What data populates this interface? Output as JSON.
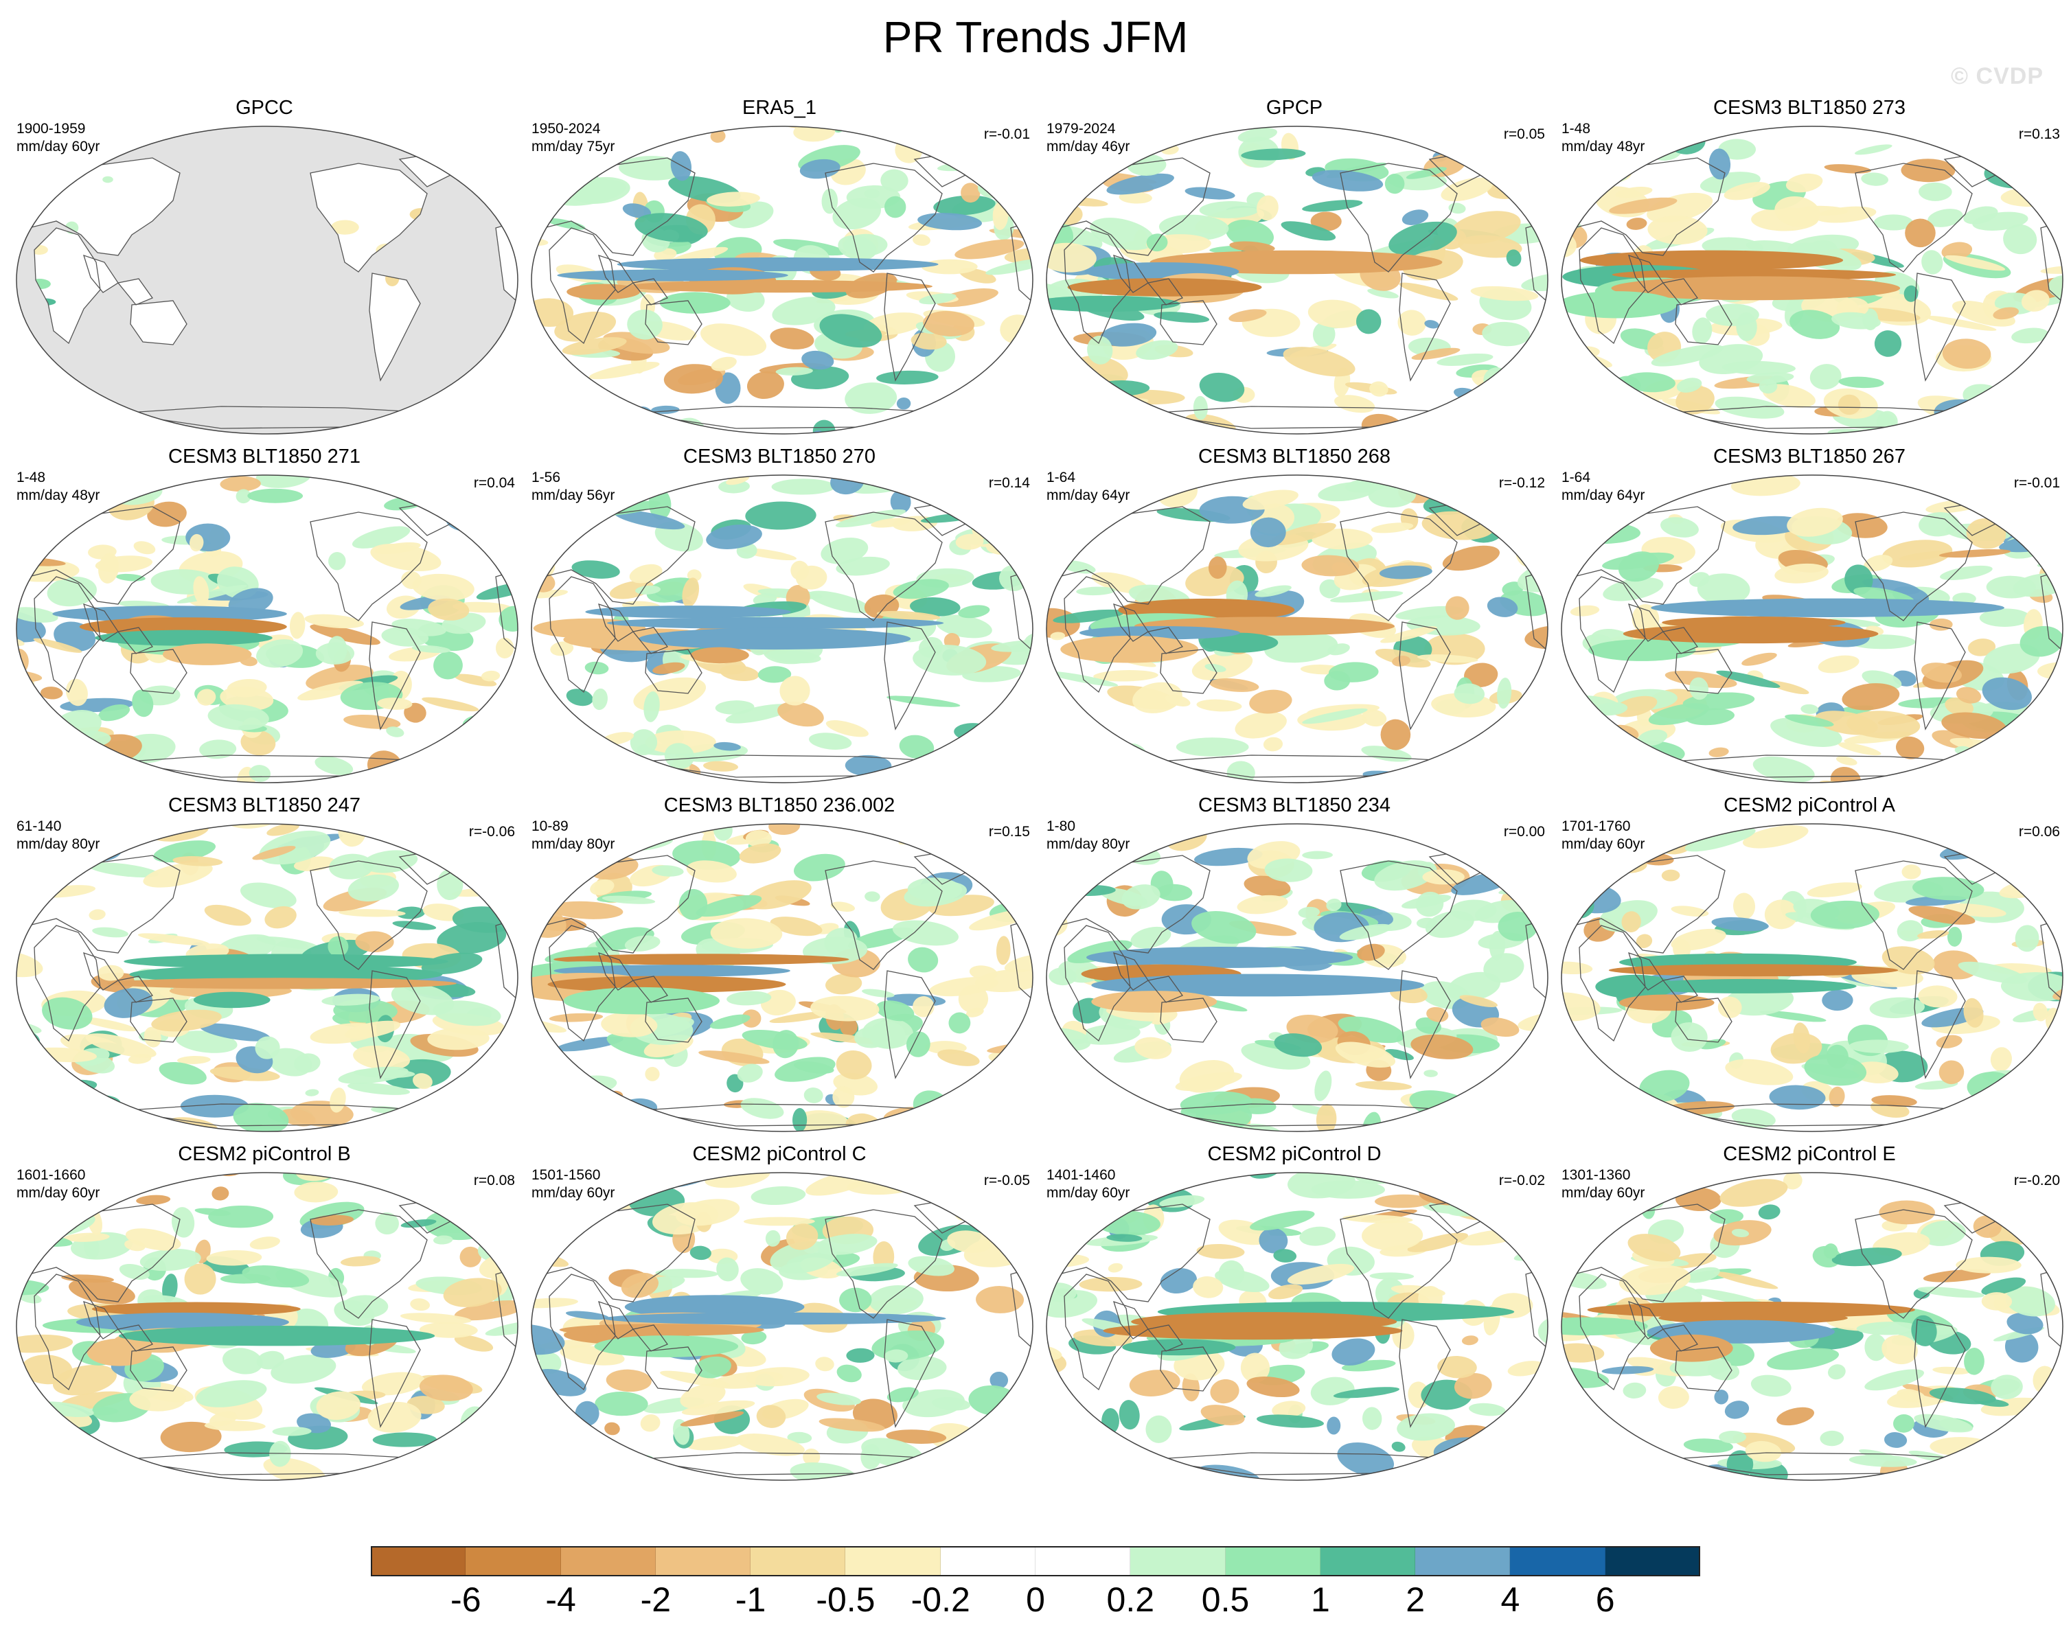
{
  "figure": {
    "title": "PR Trends JFM",
    "watermark": "© CVDP"
  },
  "chart_data": {
    "type": "heatmap",
    "title": "PR Trends JFM",
    "variable": "precipitation trend",
    "season": "JFM",
    "projection": "Robinson (global, Pacific-centered)",
    "panels": [
      {
        "title": "GPCC",
        "period": "1900-1959",
        "units": "mm/day 60yr",
        "r": "",
        "coverage": "land-only"
      },
      {
        "title": "ERA5_1",
        "period": "1950-2024",
        "units": "mm/day 75yr",
        "r": "r=-0.01",
        "coverage": "global"
      },
      {
        "title": "GPCP",
        "period": "1979-2024",
        "units": "mm/day 46yr",
        "r": "r=0.05",
        "coverage": "global"
      },
      {
        "title": "CESM3 BLT1850 273",
        "period": "1-48",
        "units": "mm/day 48yr",
        "r": "r=0.13",
        "coverage": "global"
      },
      {
        "title": "CESM3 BLT1850 271",
        "period": "1-48",
        "units": "mm/day 48yr",
        "r": "r=0.04",
        "coverage": "global"
      },
      {
        "title": "CESM3 BLT1850 270",
        "period": "1-56",
        "units": "mm/day 56yr",
        "r": "r=0.14",
        "coverage": "global"
      },
      {
        "title": "CESM3 BLT1850 268",
        "period": "1-64",
        "units": "mm/day 64yr",
        "r": "r=-0.12",
        "coverage": "global"
      },
      {
        "title": "CESM3 BLT1850 267",
        "period": "1-64",
        "units": "mm/day 64yr",
        "r": "r=-0.01",
        "coverage": "global"
      },
      {
        "title": "CESM3 BLT1850 247",
        "period": "61-140",
        "units": "mm/day 80yr",
        "r": "r=-0.06",
        "coverage": "global"
      },
      {
        "title": "CESM3 BLT1850 236.002",
        "period": "10-89",
        "units": "mm/day 80yr",
        "r": "r=0.15",
        "coverage": "global"
      },
      {
        "title": "CESM3 BLT1850 234",
        "period": "1-80",
        "units": "mm/day 80yr",
        "r": "r=0.00",
        "coverage": "global"
      },
      {
        "title": "CESM2 piControl A",
        "period": "1701-1760",
        "units": "mm/day 60yr",
        "r": "r=0.06",
        "coverage": "global"
      },
      {
        "title": "CESM2 piControl B",
        "period": "1601-1660",
        "units": "mm/day 60yr",
        "r": "r=0.08",
        "coverage": "global"
      },
      {
        "title": "CESM2 piControl C",
        "period": "1501-1560",
        "units": "mm/day 60yr",
        "r": "r=-0.05",
        "coverage": "global"
      },
      {
        "title": "CESM2 piControl D",
        "period": "1401-1460",
        "units": "mm/day 60yr",
        "r": "r=-0.02",
        "coverage": "global"
      },
      {
        "title": "CESM2 piControl E",
        "period": "1301-1360",
        "units": "mm/day 60yr",
        "r": "r=-0.20",
        "coverage": "global"
      }
    ],
    "colorbar": {
      "levels": [
        "-6",
        "-4",
        "-2",
        "-1",
        "-0.5",
        "-0.2",
        "0",
        "0.2",
        "0.5",
        "1",
        "2",
        "4",
        "6"
      ],
      "colors": [
        "#b5692a",
        "#cf8840",
        "#e1a562",
        "#efc283",
        "#f4dc9c",
        "#fbf0bd",
        "#ffffff",
        "#ffffff",
        "#c6f5cc",
        "#96e8b0",
        "#52bc98",
        "#6da6c8",
        "#1866a8",
        "#053a5c"
      ],
      "orientation": "horizontal",
      "placement": "bottom"
    }
  }
}
